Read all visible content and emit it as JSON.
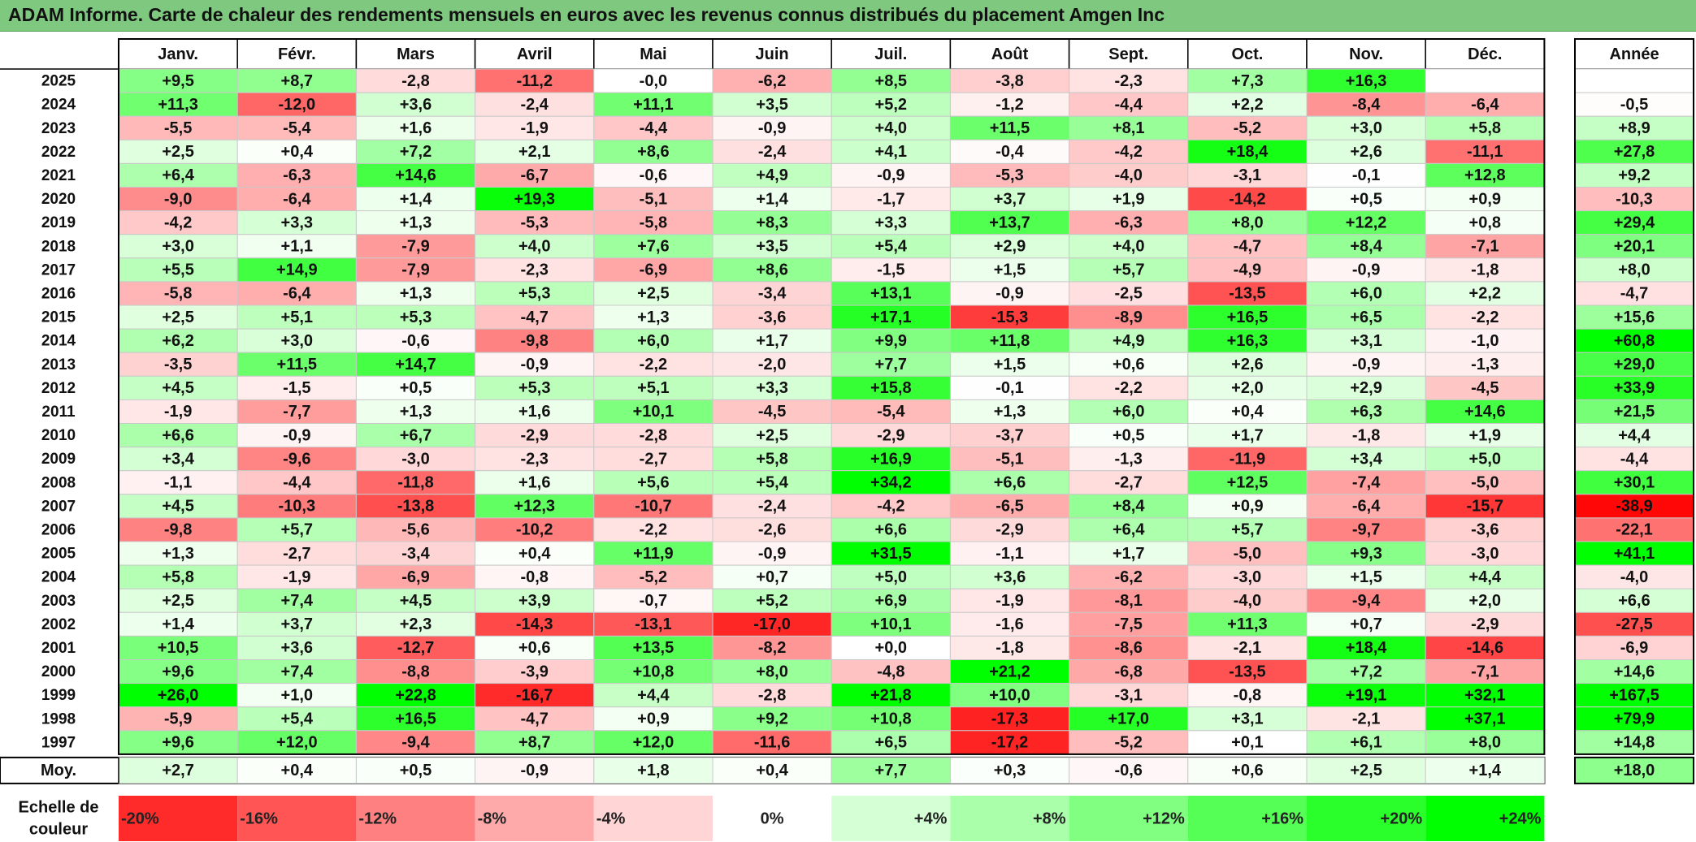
{
  "title": "ADAM Informe. Carte de chaleur des rendements mensuels en euros avec les revenus connus distribués du placement Amgen Inc",
  "chart_data": {
    "type": "heatmap",
    "months": [
      "Janv.",
      "Févr.",
      "Mars",
      "Avril",
      "Mai",
      "Juin",
      "Juil.",
      "Août",
      "Sept.",
      "Oct.",
      "Nov.",
      "Déc."
    ],
    "year_header": "Année",
    "rows": [
      {
        "year": "2025",
        "values": [
          "+9,5",
          "+8,7",
          "-2,8",
          "-11,2",
          "-0,0",
          "-6,2",
          "+8,5",
          "-3,8",
          "-2,3",
          "+7,3",
          "+16,3",
          ""
        ],
        "annual": ""
      },
      {
        "year": "2024",
        "values": [
          "+11,3",
          "-12,0",
          "+3,6",
          "-2,4",
          "+11,1",
          "+3,5",
          "+5,2",
          "-1,2",
          "-4,4",
          "+2,2",
          "-8,4",
          "-6,4"
        ],
        "annual": "-0,5"
      },
      {
        "year": "2023",
        "values": [
          "-5,5",
          "-5,4",
          "+1,6",
          "-1,9",
          "-4,4",
          "-0,9",
          "+4,0",
          "+11,5",
          "+8,1",
          "-5,2",
          "+3,0",
          "+5,8"
        ],
        "annual": "+8,9"
      },
      {
        "year": "2022",
        "values": [
          "+2,5",
          "+0,4",
          "+7,2",
          "+2,1",
          "+8,6",
          "-2,4",
          "+4,1",
          "-0,4",
          "-4,2",
          "+18,4",
          "+2,6",
          "-11,1"
        ],
        "annual": "+27,8"
      },
      {
        "year": "2021",
        "values": [
          "+6,4",
          "-6,3",
          "+14,6",
          "-6,7",
          "-0,6",
          "+4,9",
          "-0,9",
          "-5,3",
          "-4,0",
          "-3,1",
          "-0,1",
          "+12,8"
        ],
        "annual": "+9,2"
      },
      {
        "year": "2020",
        "values": [
          "-9,0",
          "-6,4",
          "+1,4",
          "+19,3",
          "-5,1",
          "+1,4",
          "-1,7",
          "+3,7",
          "+1,9",
          "-14,2",
          "+0,5",
          "+0,9"
        ],
        "annual": "-10,3"
      },
      {
        "year": "2019",
        "values": [
          "-4,2",
          "+3,3",
          "+1,3",
          "-5,3",
          "-5,8",
          "+8,3",
          "+3,3",
          "+13,7",
          "-6,3",
          "+8,0",
          "+12,2",
          "+0,8"
        ],
        "annual": "+29,4"
      },
      {
        "year": "2018",
        "values": [
          "+3,0",
          "+1,1",
          "-7,9",
          "+4,0",
          "+7,6",
          "+3,5",
          "+5,4",
          "+2,9",
          "+4,0",
          "-4,7",
          "+8,4",
          "-7,1"
        ],
        "annual": "+20,1"
      },
      {
        "year": "2017",
        "values": [
          "+5,5",
          "+14,9",
          "-7,9",
          "-2,3",
          "-6,9",
          "+8,6",
          "-1,5",
          "+1,5",
          "+5,7",
          "-4,9",
          "-0,9",
          "-1,8"
        ],
        "annual": "+8,0"
      },
      {
        "year": "2016",
        "values": [
          "-5,8",
          "-6,4",
          "+1,3",
          "+5,3",
          "+2,5",
          "-3,4",
          "+13,1",
          "-0,9",
          "-2,5",
          "-13,5",
          "+6,0",
          "+2,2"
        ],
        "annual": "-4,7"
      },
      {
        "year": "2015",
        "values": [
          "+2,5",
          "+5,1",
          "+5,3",
          "-4,7",
          "+1,3",
          "-3,6",
          "+17,1",
          "-15,3",
          "-8,9",
          "+16,5",
          "+6,5",
          "-2,2"
        ],
        "annual": "+15,6"
      },
      {
        "year": "2014",
        "values": [
          "+6,2",
          "+3,0",
          "-0,6",
          "-9,8",
          "+6,0",
          "+1,7",
          "+9,9",
          "+11,8",
          "+4,9",
          "+16,3",
          "+3,1",
          "-1,0"
        ],
        "annual": "+60,8"
      },
      {
        "year": "2013",
        "values": [
          "-3,5",
          "+11,5",
          "+14,7",
          "-0,9",
          "-2,2",
          "-2,0",
          "+7,7",
          "+1,5",
          "+0,6",
          "+2,6",
          "-0,9",
          "-1,3"
        ],
        "annual": "+29,0"
      },
      {
        "year": "2012",
        "values": [
          "+4,5",
          "-1,5",
          "+0,5",
          "+5,3",
          "+5,1",
          "+3,3",
          "+15,8",
          "-0,1",
          "-2,2",
          "+2,0",
          "+2,9",
          "-4,5"
        ],
        "annual": "+33,9"
      },
      {
        "year": "2011",
        "values": [
          "-1,9",
          "-7,7",
          "+1,3",
          "+1,6",
          "+10,1",
          "-4,5",
          "-5,4",
          "+1,3",
          "+6,0",
          "+0,4",
          "+6,3",
          "+14,6"
        ],
        "annual": "+21,5"
      },
      {
        "year": "2010",
        "values": [
          "+6,6",
          "-0,9",
          "+6,7",
          "-2,9",
          "-2,8",
          "+2,5",
          "-2,9",
          "-3,7",
          "+0,5",
          "+1,7",
          "-1,8",
          "+1,9"
        ],
        "annual": "+4,4"
      },
      {
        "year": "2009",
        "values": [
          "+3,4",
          "-9,6",
          "-3,0",
          "-2,3",
          "-2,7",
          "+5,8",
          "+16,9",
          "-5,1",
          "-1,3",
          "-11,9",
          "+3,4",
          "+5,0"
        ],
        "annual": "-4,4"
      },
      {
        "year": "2008",
        "values": [
          "-1,1",
          "-4,4",
          "-11,8",
          "+1,6",
          "+5,6",
          "+5,4",
          "+34,2",
          "+6,6",
          "-2,7",
          "+12,5",
          "-7,4",
          "-5,0"
        ],
        "annual": "+30,1"
      },
      {
        "year": "2007",
        "values": [
          "+4,5",
          "-10,3",
          "-13,8",
          "+12,3",
          "-10,7",
          "-2,4",
          "-4,2",
          "-6,5",
          "+8,4",
          "+0,9",
          "-6,4",
          "-15,7"
        ],
        "annual": "-38,9"
      },
      {
        "year": "2006",
        "values": [
          "-9,8",
          "+5,7",
          "-5,6",
          "-10,2",
          "-2,2",
          "-2,6",
          "+6,6",
          "-2,9",
          "+6,4",
          "+5,7",
          "-9,7",
          "-3,6"
        ],
        "annual": "-22,1"
      },
      {
        "year": "2005",
        "values": [
          "+1,3",
          "-2,7",
          "-3,4",
          "+0,4",
          "+11,9",
          "-0,9",
          "+31,5",
          "-1,1",
          "+1,7",
          "-5,0",
          "+9,3",
          "-3,0"
        ],
        "annual": "+41,1"
      },
      {
        "year": "2004",
        "values": [
          "+5,8",
          "-1,9",
          "-6,9",
          "-0,8",
          "-5,2",
          "+0,7",
          "+5,0",
          "+3,6",
          "-6,2",
          "-3,0",
          "+1,5",
          "+4,4"
        ],
        "annual": "-4,0"
      },
      {
        "year": "2003",
        "values": [
          "+2,5",
          "+7,4",
          "+4,5",
          "+3,9",
          "-0,7",
          "+5,2",
          "+6,9",
          "-1,9",
          "-8,1",
          "-4,0",
          "-9,4",
          "+2,0"
        ],
        "annual": "+6,6"
      },
      {
        "year": "2002",
        "values": [
          "+1,4",
          "+3,7",
          "+2,3",
          "-14,3",
          "-13,1",
          "-17,0",
          "+10,1",
          "-1,6",
          "-7,5",
          "+11,3",
          "+0,7",
          "-2,9"
        ],
        "annual": "-27,5"
      },
      {
        "year": "2001",
        "values": [
          "+10,5",
          "+3,6",
          "-12,7",
          "+0,6",
          "+13,5",
          "-8,2",
          "+0,0",
          "-1,8",
          "-8,6",
          "-2,1",
          "+18,4",
          "-14,6"
        ],
        "annual": "-6,9"
      },
      {
        "year": "2000",
        "values": [
          "+9,6",
          "+7,4",
          "-8,8",
          "-3,9",
          "+10,8",
          "+8,0",
          "-4,8",
          "+21,2",
          "-6,8",
          "-13,5",
          "+7,2",
          "-7,1"
        ],
        "annual": "+14,6"
      },
      {
        "year": "1999",
        "values": [
          "+26,0",
          "+1,0",
          "+22,8",
          "-16,7",
          "+4,4",
          "-2,8",
          "+21,8",
          "+10,0",
          "-3,1",
          "-0,8",
          "+19,1",
          "+32,1"
        ],
        "annual": "+167,5"
      },
      {
        "year": "1998",
        "values": [
          "-5,9",
          "+5,4",
          "+16,5",
          "-4,7",
          "+0,9",
          "+9,2",
          "+10,8",
          "-17,3",
          "+17,0",
          "+3,1",
          "-2,1",
          "+37,1"
        ],
        "annual": "+79,9"
      },
      {
        "year": "1997",
        "values": [
          "+9,6",
          "+12,0",
          "-9,4",
          "+8,7",
          "+12,0",
          "-11,6",
          "+6,5",
          "-17,2",
          "-5,2",
          "+0,1",
          "+6,1",
          "+8,0"
        ],
        "annual": "+14,8"
      }
    ],
    "average": {
      "label": "Moy.",
      "values": [
        "+2,7",
        "+0,4",
        "+0,5",
        "-0,9",
        "+1,8",
        "+0,4",
        "+7,7",
        "+0,3",
        "-0,6",
        "+0,6",
        "+2,5",
        "+1,4"
      ],
      "annual": "+18,0"
    },
    "scale": {
      "label_line1": "Echelle de",
      "label_line2": "couleur",
      "steps": [
        {
          "label": "-20%",
          "value": -20
        },
        {
          "label": "-16%",
          "value": -16
        },
        {
          "label": "-12%",
          "value": -12
        },
        {
          "label": "-8%",
          "value": -8
        },
        {
          "label": "-4%",
          "value": -4
        },
        {
          "label": "0%",
          "value": 0
        },
        {
          "label": "+4%",
          "value": 4
        },
        {
          "label": "+8%",
          "value": 8
        },
        {
          "label": "+12%",
          "value": 12
        },
        {
          "label": "+16%",
          "value": 16
        },
        {
          "label": "+20%",
          "value": 20
        },
        {
          "label": "+24%",
          "value": 24
        }
      ]
    },
    "colors": {
      "negative": "#ff0000",
      "zero": "#ffffff",
      "positive": "#00ff00",
      "title_bg": "#7fc87f"
    }
  }
}
